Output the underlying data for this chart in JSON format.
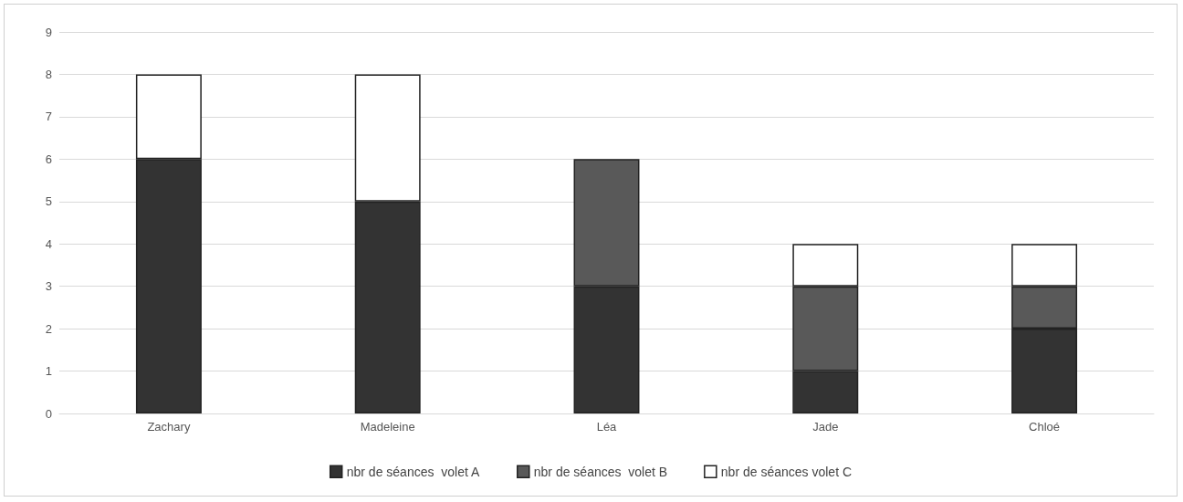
{
  "chart_data": {
    "type": "bar",
    "stacked": true,
    "categories": [
      "Zachary",
      "Madeleine",
      "Léa",
      "Jade",
      "Chloé"
    ],
    "series": [
      {
        "name": "nbr de séances  volet A",
        "color": "#333333",
        "values": [
          6,
          5,
          3,
          1,
          2
        ]
      },
      {
        "name": "nbr de séances  volet B",
        "color": "#595959",
        "values": [
          0,
          0,
          3,
          2,
          1
        ]
      },
      {
        "name": "nbr de séances volet C",
        "color": "#ffffff",
        "values": [
          2,
          3,
          0,
          1,
          1
        ]
      }
    ],
    "ylim": [
      0,
      9
    ],
    "yticks": [
      0,
      1,
      2,
      3,
      4,
      5,
      6,
      7,
      8,
      9
    ],
    "grid": "y",
    "legend": "bottom"
  }
}
